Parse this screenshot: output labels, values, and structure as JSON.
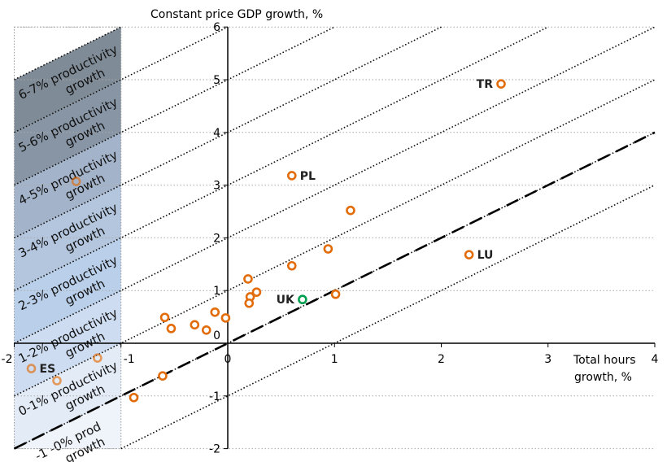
{
  "chart_data": {
    "type": "scatter",
    "title": "",
    "ylabel": "Constant price GDP growth, %",
    "xlabel": "Total hours growth, %",
    "xlim": [
      -2,
      4
    ],
    "ylim": [
      -2,
      6
    ],
    "x_ticks": [
      -2,
      -1,
      0,
      1,
      2,
      3,
      4
    ],
    "y_ticks": [
      -2,
      -1,
      0,
      1,
      2,
      3,
      4,
      5,
      6
    ],
    "grid": "horizontal dotted",
    "reference_line": {
      "style": "dashed",
      "slope": 1,
      "intercept": 0
    },
    "iso_productivity_lines": {
      "style": "dotted",
      "slope": 1,
      "intercepts": [
        -1,
        0,
        1,
        2,
        3,
        4,
        5,
        6,
        7
      ]
    },
    "bands": [
      {
        "label": "6-7% productivity growth",
        "low": 6,
        "color": "#7f8b97"
      },
      {
        "label": "5-6% productivity growth",
        "low": 5,
        "color": "#8795a5"
      },
      {
        "label": "4-5% productivity growth",
        "low": 4,
        "color": "#a3b3c9"
      },
      {
        "label": "3-4% productivity growth",
        "low": 3,
        "color": "#b3c6de"
      },
      {
        "label": "2-3% productivity growth",
        "low": 2,
        "color": "#b9cfea"
      },
      {
        "label": "1-2% productivity growth",
        "low": 1,
        "color": "#cddcf0"
      },
      {
        "label": "0-1% productivity growth",
        "low": 0,
        "color": "#e3ebf7"
      },
      {
        "label": "-1 -0% prod growth",
        "low": -1,
        "color": "#eff3fa"
      }
    ],
    "colors": {
      "default": "#e36c0a",
      "highlight": "#00a050"
    },
    "points": [
      {
        "x": 2.56,
        "y": 4.92,
        "label": "TR"
      },
      {
        "x": 0.6,
        "y": 3.18,
        "label": "PL"
      },
      {
        "x": 1.15,
        "y": 2.52
      },
      {
        "x": 0.94,
        "y": 1.79
      },
      {
        "x": 0.6,
        "y": 1.47
      },
      {
        "x": 2.26,
        "y": 1.68,
        "label": "LU"
      },
      {
        "x": 0.19,
        "y": 1.22
      },
      {
        "x": 0.27,
        "y": 0.97
      },
      {
        "x": 0.21,
        "y": 0.88
      },
      {
        "x": 0.2,
        "y": 0.76
      },
      {
        "x": 0.7,
        "y": 0.83,
        "label": "UK",
        "highlight": true
      },
      {
        "x": 1.01,
        "y": 0.93
      },
      {
        "x": -0.12,
        "y": 0.59
      },
      {
        "x": -0.02,
        "y": 0.48
      },
      {
        "x": -0.31,
        "y": 0.35
      },
      {
        "x": -0.2,
        "y": 0.25
      },
      {
        "x": -0.59,
        "y": 0.49
      },
      {
        "x": -0.53,
        "y": 0.28
      },
      {
        "x": -1.42,
        "y": 3.07
      },
      {
        "x": -1.22,
        "y": -0.28
      },
      {
        "x": -1.84,
        "y": -0.48,
        "label": "ES"
      },
      {
        "x": -1.6,
        "y": -0.71
      },
      {
        "x": -0.61,
        "y": -0.62
      },
      {
        "x": -0.88,
        "y": -1.03
      }
    ]
  }
}
